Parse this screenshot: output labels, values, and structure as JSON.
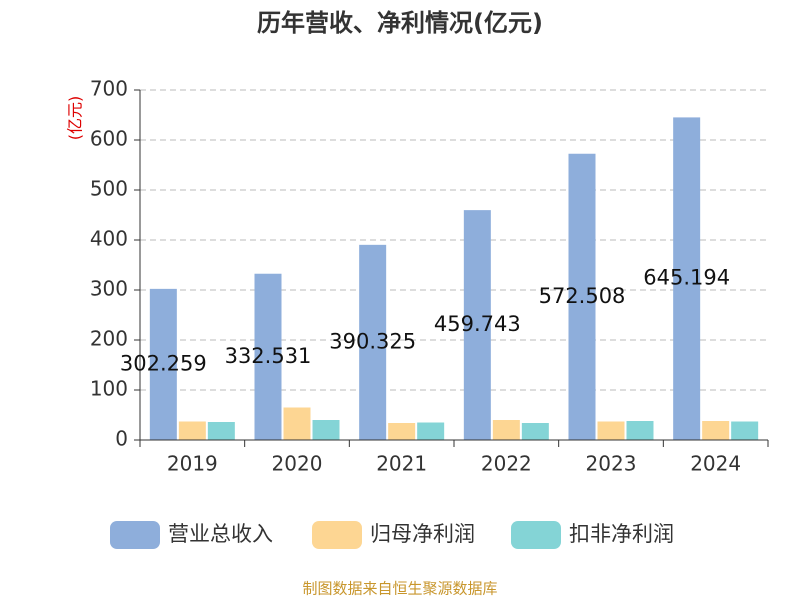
{
  "chart_data": {
    "type": "bar",
    "title": "历年营收、净利情况(亿元)",
    "y_label": "(亿元)",
    "categories": [
      "2019",
      "2020",
      "2021",
      "2022",
      "2023",
      "2024"
    ],
    "series": [
      {
        "name": "营业总收入",
        "color": "#8eaedb",
        "values": [
          302.259,
          332.531,
          390.325,
          459.743,
          572.508,
          645.194
        ],
        "show_labels": true
      },
      {
        "name": "归母净利润",
        "color": "#fdd693",
        "values": [
          37,
          65,
          34,
          40,
          37,
          38
        ]
      },
      {
        "name": "扣非净利润",
        "color": "#84d4d6",
        "values": [
          36,
          40,
          35,
          34,
          38,
          37
        ]
      }
    ],
    "ylim": [
      0,
      700
    ],
    "yticks": [
      0,
      100,
      200,
      300,
      400,
      500,
      600,
      700
    ],
    "grid": true,
    "source": "制图数据来自恒生聚源数据库"
  }
}
